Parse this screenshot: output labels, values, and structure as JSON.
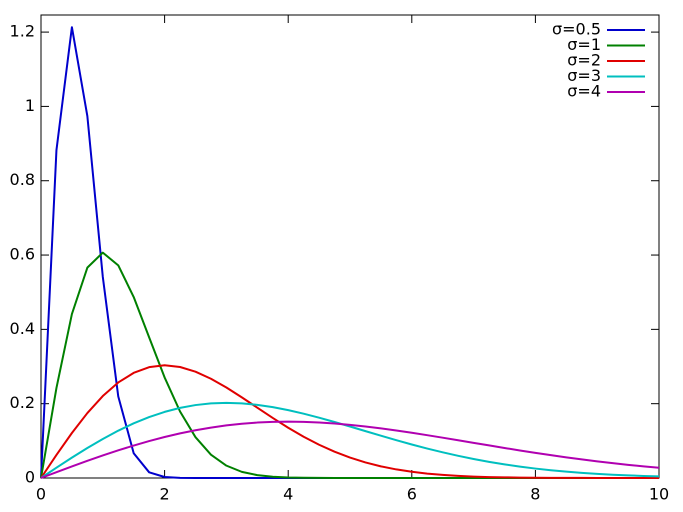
{
  "chart_data": {
    "type": "line",
    "x": [
      0,
      0.25,
      0.5,
      0.75,
      1,
      1.25,
      1.5,
      1.75,
      2,
      2.25,
      2.5,
      2.75,
      3,
      3.25,
      3.5,
      3.75,
      4,
      4.25,
      4.5,
      4.75,
      5,
      5.25,
      5.5,
      5.75,
      6,
      6.25,
      6.5,
      6.75,
      7,
      7.25,
      7.5,
      7.75,
      8,
      8.25,
      8.5,
      8.75,
      9,
      9.25,
      9.5,
      9.75,
      10
    ],
    "series": [
      {
        "name": "σ=0.5",
        "color": "#0000cc",
        "values": [
          0,
          0.8825,
          1.2131,
          0.9741,
          0.5413,
          0.2197,
          0.0667,
          0.0153,
          0.0027,
          0.0004,
          0,
          0,
          0,
          0,
          0,
          0,
          0,
          0,
          0,
          0,
          0,
          0,
          0,
          0,
          0,
          0,
          0,
          0,
          0,
          0,
          0,
          0,
          0,
          0,
          0,
          0,
          0,
          0,
          0,
          0,
          0
        ]
      },
      {
        "name": "σ=1",
        "color": "#008000",
        "values": [
          0,
          0.2423,
          0.4412,
          0.5661,
          0.6065,
          0.5723,
          0.487,
          0.3785,
          0.2707,
          0.179,
          0.1098,
          0.0627,
          0.0333,
          0.0165,
          0.0077,
          0.0033,
          0.0013,
          0.0005,
          0.0002,
          0.0001,
          0,
          0,
          0,
          0,
          0,
          0,
          0,
          0,
          0,
          0,
          0,
          0,
          0,
          0,
          0,
          0,
          0,
          0,
          0,
          0,
          0
        ]
      },
      {
        "name": "σ=2",
        "color": "#e00000",
        "values": [
          0,
          0.062,
          0.1211,
          0.1748,
          0.2206,
          0.2571,
          0.283,
          0.2983,
          0.3033,
          0.2987,
          0.2861,
          0.2671,
          0.2435,
          0.217,
          0.1893,
          0.1616,
          0.1353,
          0.1111,
          0.0895,
          0.0708,
          0.0549,
          0.0419,
          0.0313,
          0.0231,
          0.0167,
          0.0118,
          0.0083,
          0.0057,
          0.0038,
          0.0025,
          0.0017,
          0.0011,
          0.0007,
          0.0004,
          0.0003,
          0.0002,
          0.0001,
          0.0001,
          0,
          0,
          0
        ]
      },
      {
        "name": "σ=3",
        "color": "#00bfbf",
        "values": [
          0,
          0.0277,
          0.0548,
          0.0808,
          0.1051,
          0.1274,
          0.1471,
          0.164,
          0.1779,
          0.1887,
          0.1963,
          0.2008,
          0.2022,
          0.2008,
          0.1969,
          0.1908,
          0.1827,
          0.1731,
          0.1623,
          0.1507,
          0.1386,
          0.1262,
          0.1139,
          0.1018,
          0.0902,
          0.0793,
          0.0691,
          0.0597,
          0.0511,
          0.0434,
          0.0366,
          0.0306,
          0.0254,
          0.0209,
          0.0171,
          0.0138,
          0.0111,
          0.0089,
          0.007,
          0.0055,
          0.0043
        ]
      },
      {
        "name": "σ=4",
        "color": "#b000b0",
        "values": [
          0,
          0.0156,
          0.031,
          0.0461,
          0.0606,
          0.0744,
          0.0874,
          0.0994,
          0.1103,
          0.1201,
          0.1285,
          0.1357,
          0.1415,
          0.146,
          0.1492,
          0.151,
          0.1516,
          0.151,
          0.1494,
          0.1467,
          0.1431,
          0.1387,
          0.1336,
          0.1279,
          0.1218,
          0.1152,
          0.1085,
          0.1016,
          0.0946,
          0.0877,
          0.0808,
          0.0741,
          0.0677,
          0.0615,
          0.0556,
          0.05,
          0.0448,
          0.0399,
          0.0354,
          0.0312,
          0.0275
        ]
      }
    ],
    "xlim": [
      0,
      10
    ],
    "xticks": [
      0,
      2,
      4,
      6,
      8,
      10
    ],
    "ylim": [
      0,
      1.246
    ],
    "yticks": [
      0,
      0.2,
      0.4,
      0.6,
      0.8,
      1,
      1.2
    ],
    "grid": false,
    "legend": "upper right"
  }
}
